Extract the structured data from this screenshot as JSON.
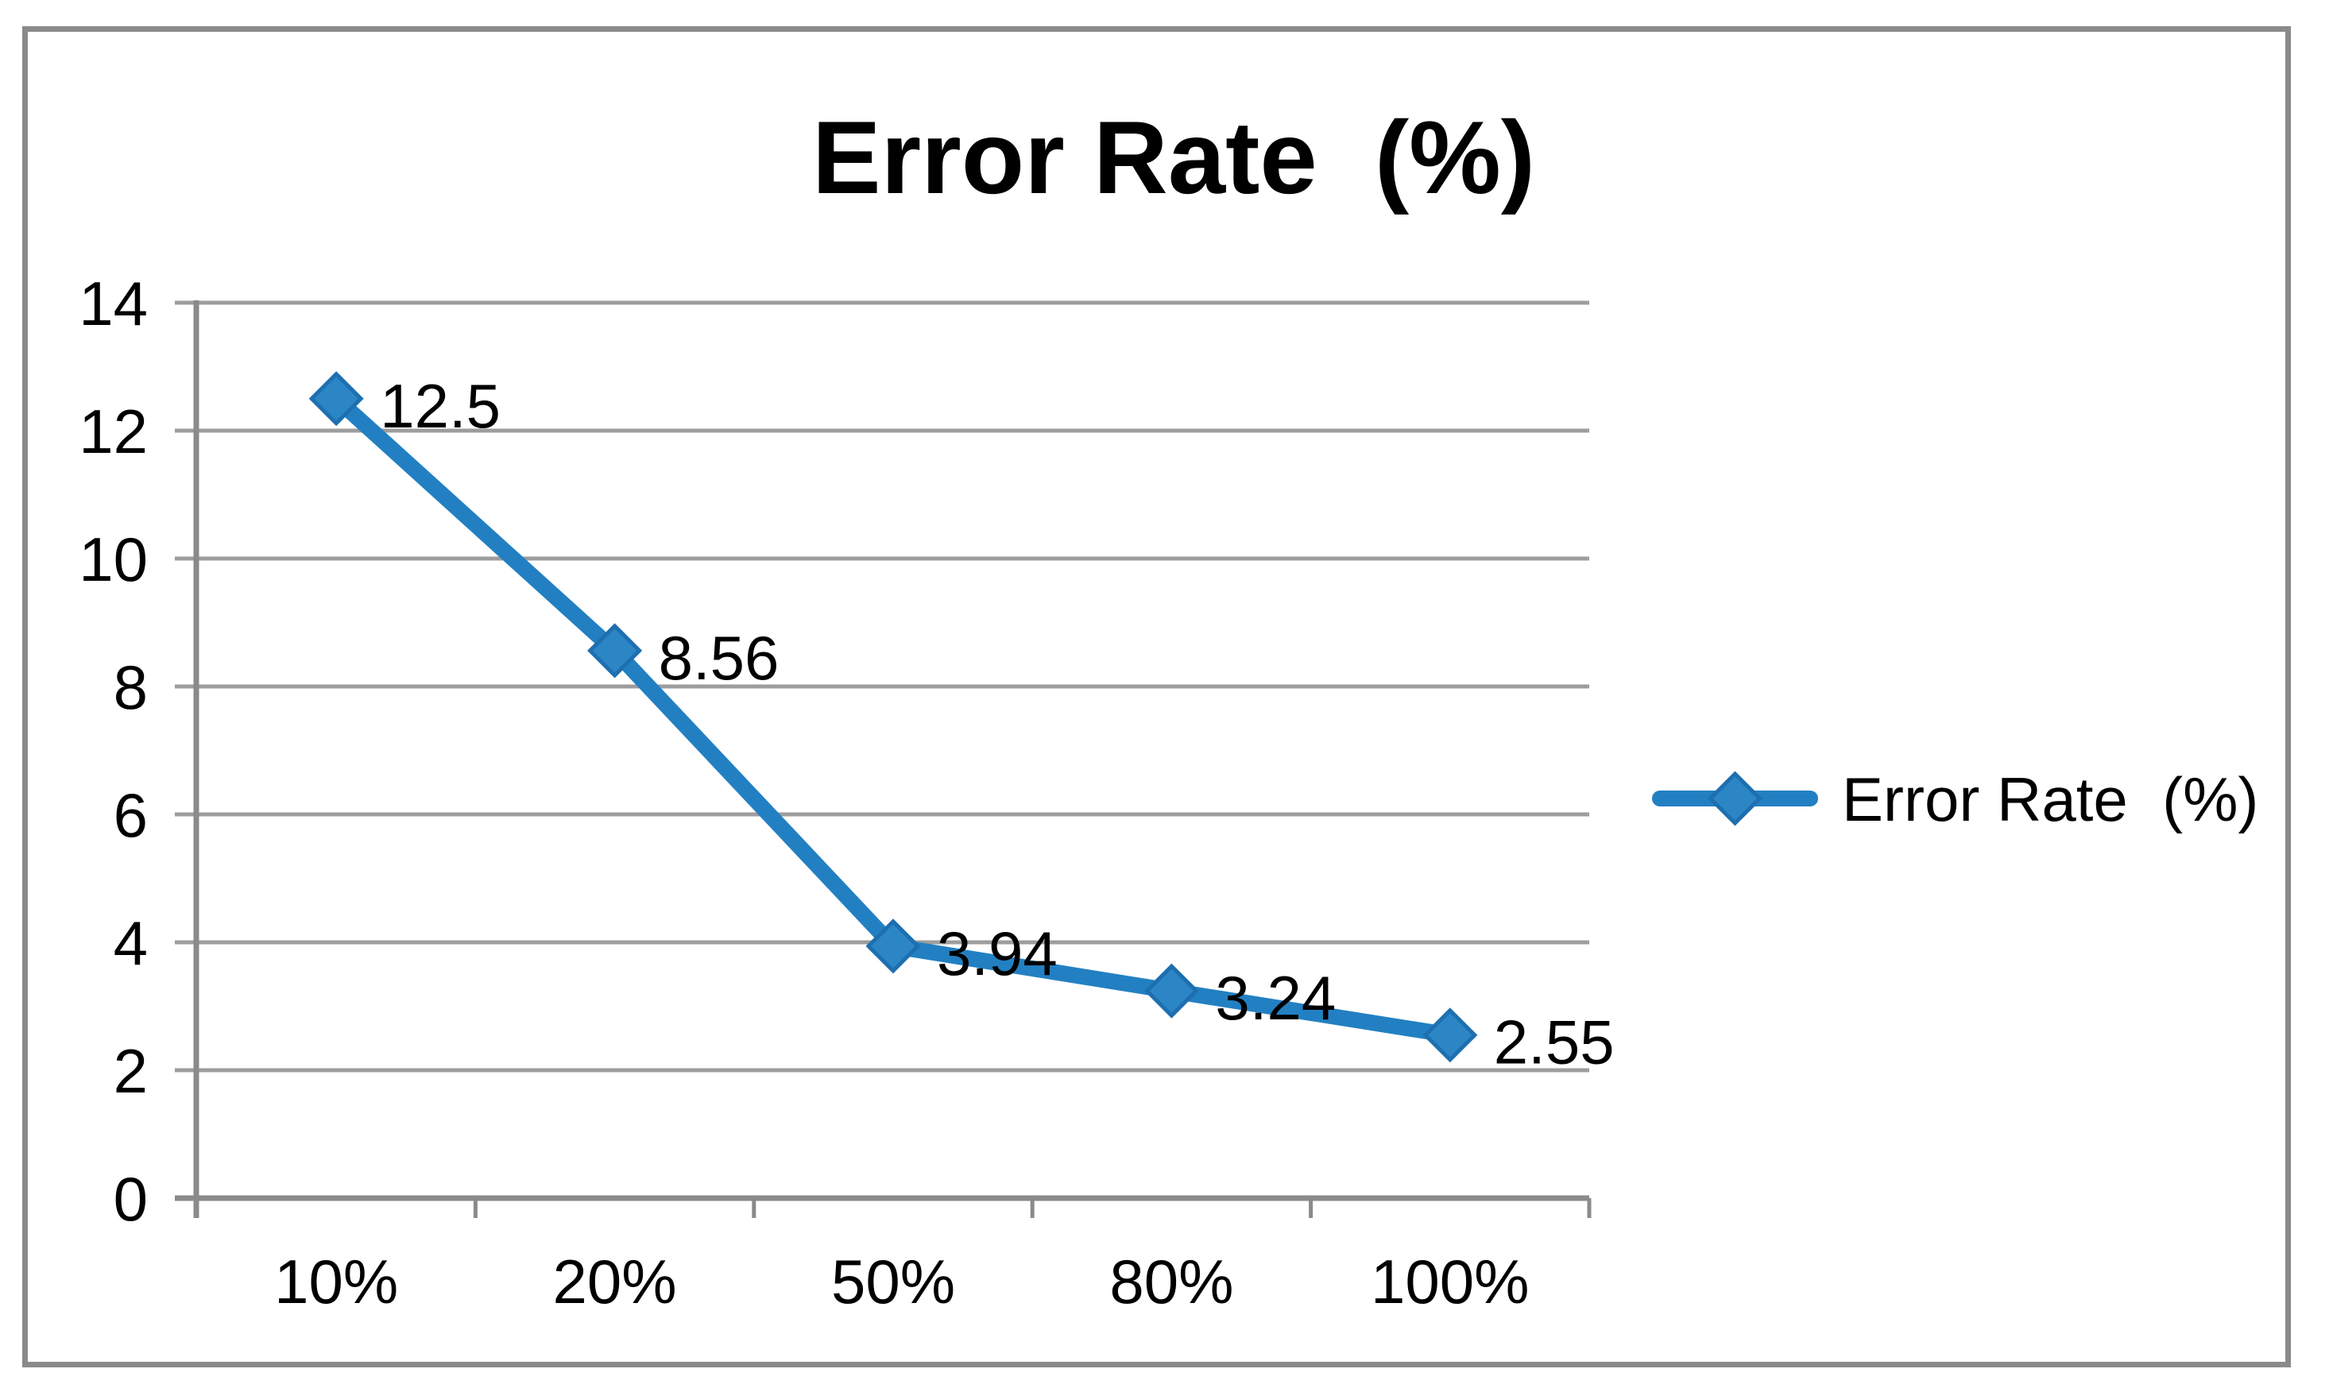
{
  "chart": {
    "title": "Error Rate  (%)",
    "legend": {
      "label": "Error Rate  (%)",
      "position": "right"
    }
  },
  "chart_data": {
    "type": "line",
    "title": "Error Rate  (%)",
    "categories": [
      "10%",
      "20%",
      "50%",
      "80%",
      "100%"
    ],
    "series": [
      {
        "name": "Error Rate  (%)",
        "values": [
          12.5,
          8.56,
          3.94,
          3.24,
          2.55
        ],
        "data_labels": [
          "12.5",
          "8.56",
          "3.94",
          "3.24",
          "2.55"
        ]
      }
    ],
    "xlabel": "",
    "ylabel": "",
    "y_ticks": [
      0,
      2,
      4,
      6,
      8,
      10,
      12,
      14
    ],
    "y_tick_labels": [
      "0",
      "2",
      "4",
      "6",
      "8",
      "10",
      "12",
      "14"
    ],
    "ylim": [
      0,
      14
    ],
    "grid": true,
    "legend_position": "right",
    "marker": "diamond",
    "colors": {
      "line": "#2280C2",
      "marker_fill": "#2C86C6",
      "marker_edge": "#1E6FB0",
      "gridline": "#9D9D9D",
      "axis": "#8A8A8A",
      "border": "#8A8A8A",
      "text": "#000000",
      "background": "#FFFFFF"
    }
  }
}
